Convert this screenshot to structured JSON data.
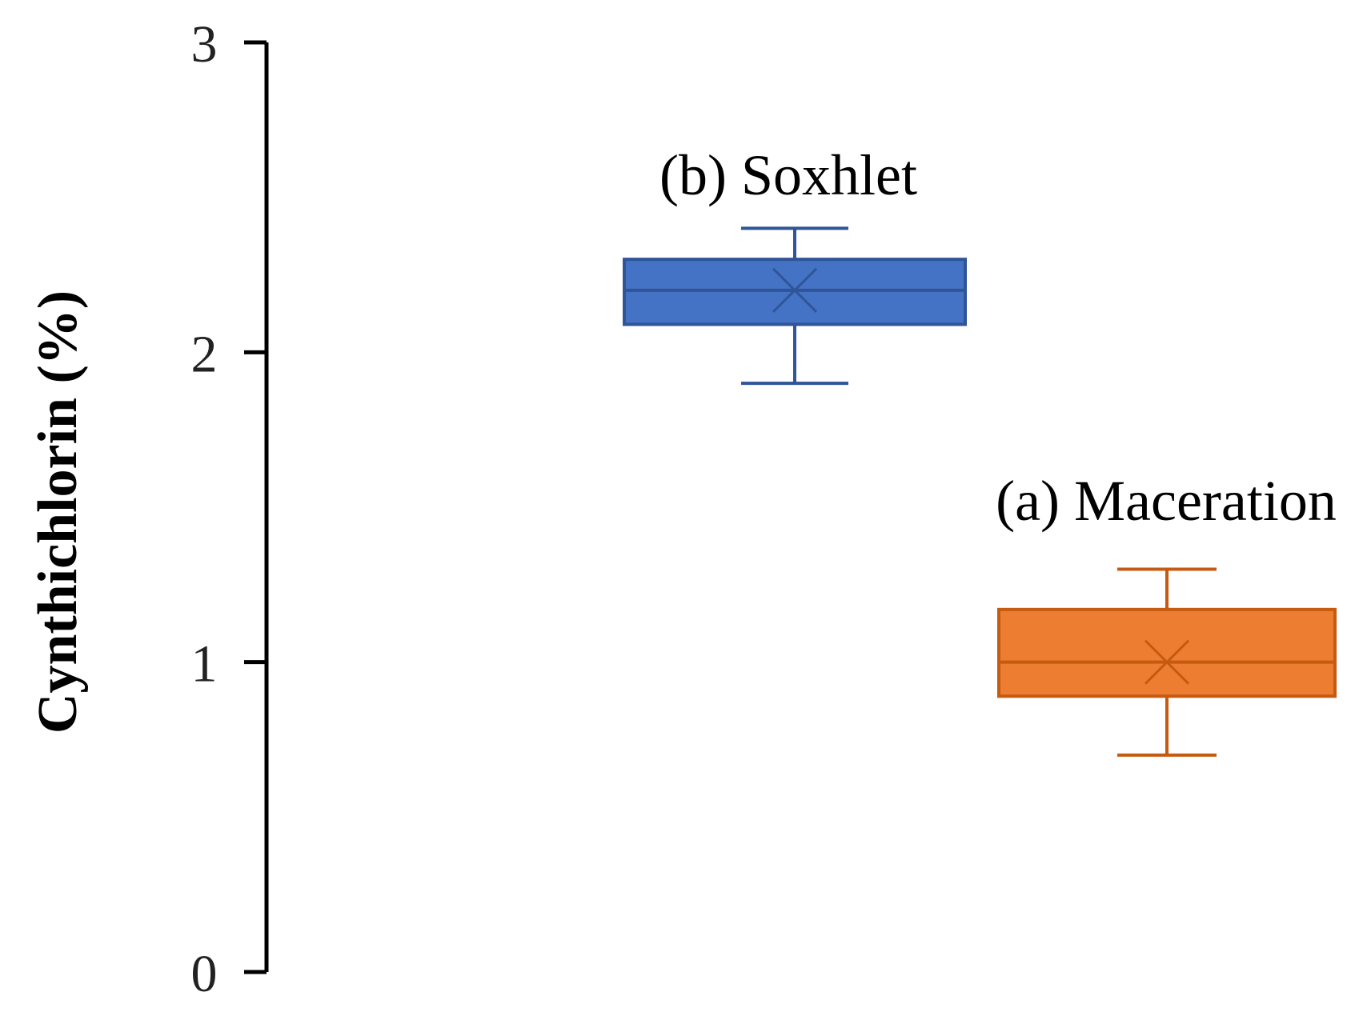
{
  "chart_data": {
    "type": "box",
    "ylabel": "Cynthichlorin (%)",
    "xlabel": "",
    "title": "",
    "ylim": [
      0,
      3
    ],
    "yticks": [
      "0",
      "1",
      "2",
      "3"
    ],
    "grid": false,
    "boxes": [
      {
        "label": "(b) Soxhlet",
        "color": "#4472C4",
        "whisker_low": 1.9,
        "q1": 2.09,
        "median": 2.2,
        "mean": 2.2,
        "q3": 2.3,
        "whisker_high": 2.4
      },
      {
        "label": "(a) Maceration",
        "color": "#ED7D31",
        "whisker_low": 0.7,
        "q1": 0.89,
        "median": 1.0,
        "mean": 1.0,
        "q3": 1.17,
        "whisker_high": 1.3
      }
    ]
  }
}
